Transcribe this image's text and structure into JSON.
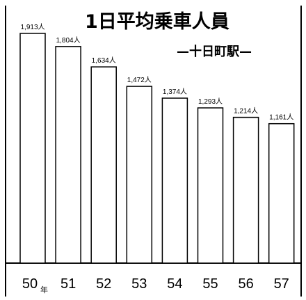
{
  "chart_data": {
    "type": "bar",
    "title": "1日平均乗車人員",
    "subtitle": "—十日町駅—",
    "categories": [
      "50",
      "51",
      "52",
      "53",
      "54",
      "55",
      "56",
      "57"
    ],
    "values": [
      1913,
      1804,
      1634,
      1472,
      1374,
      1293,
      1214,
      1161
    ],
    "value_labels": [
      "1,913人",
      "1,804人",
      "1,634人",
      "1,472人",
      "1,374人",
      "1,293人",
      "1,214人",
      "1,161人"
    ],
    "x_unit": "年",
    "xlabel": "",
    "ylabel": "",
    "ylim": [
      0,
      1913
    ],
    "grid": false,
    "legend": "none",
    "colors": {
      "bar_fill": "#ffffff",
      "bar_stroke": "#000000",
      "text": "#000000",
      "frame": "#000000"
    }
  }
}
